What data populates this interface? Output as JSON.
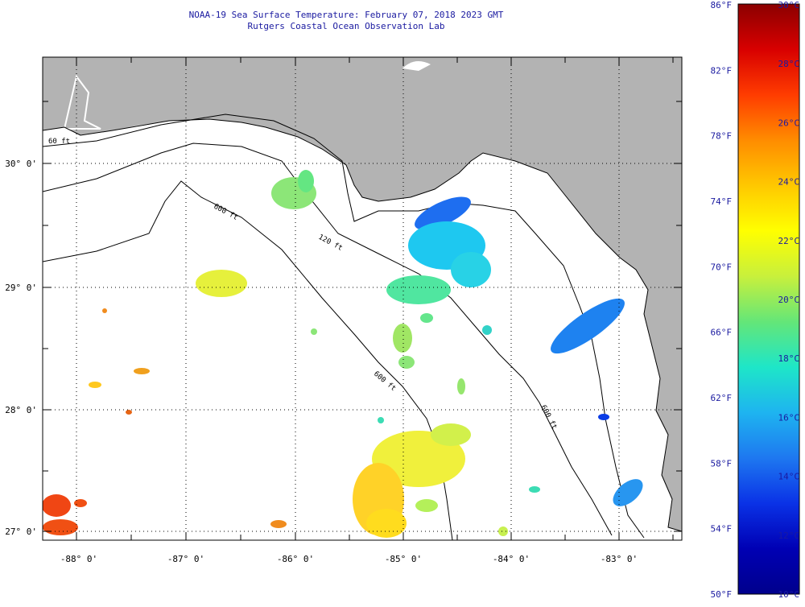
{
  "title": "NOAA-19 Sea Surface Temperature:  February 07, 2018 2023 GMT",
  "subtitle": "Rutgers Coastal Ocean Observation Lab",
  "map": {
    "lat_labels": [
      "30° 0'",
      "29° 0'",
      "28° 0'",
      "27° 0'"
    ],
    "lon_labels": [
      "-88° 0'",
      "-87° 0'",
      "-86° 0'",
      "-85° 0'",
      "-84° 0'",
      "-83° 0'"
    ],
    "isobath_labels": [
      "60 ft",
      "120 ft",
      "600 ft",
      "600 ft",
      "600 ft"
    ],
    "colors": {
      "land": "#b3b3b3",
      "ocean_missing": "#ffffff",
      "grid": "#000000"
    }
  },
  "colorbar": {
    "fahrenheit_labels": [
      "86°F",
      "82°F",
      "78°F",
      "74°F",
      "70°F",
      "66°F",
      "62°F",
      "58°F",
      "54°F",
      "50°F"
    ],
    "celsius_labels": [
      "30°C",
      "28°C",
      "26°C",
      "24°C",
      "22°C",
      "20°C",
      "18°C",
      "16°C",
      "14°C",
      "12°C",
      "10°C"
    ],
    "range_celsius": [
      10,
      30
    ],
    "range_fahrenheit": [
      50,
      86
    ],
    "gradient": [
      "#8b0000",
      "#d80000",
      "#ff3c00",
      "#ff8c00",
      "#ffc800",
      "#ffff00",
      "#c8f03c",
      "#64e678",
      "#1ee6c8",
      "#1eb4f0",
      "#1e78f0",
      "#0a32e6",
      "#0000b4",
      "#00008c"
    ]
  }
}
